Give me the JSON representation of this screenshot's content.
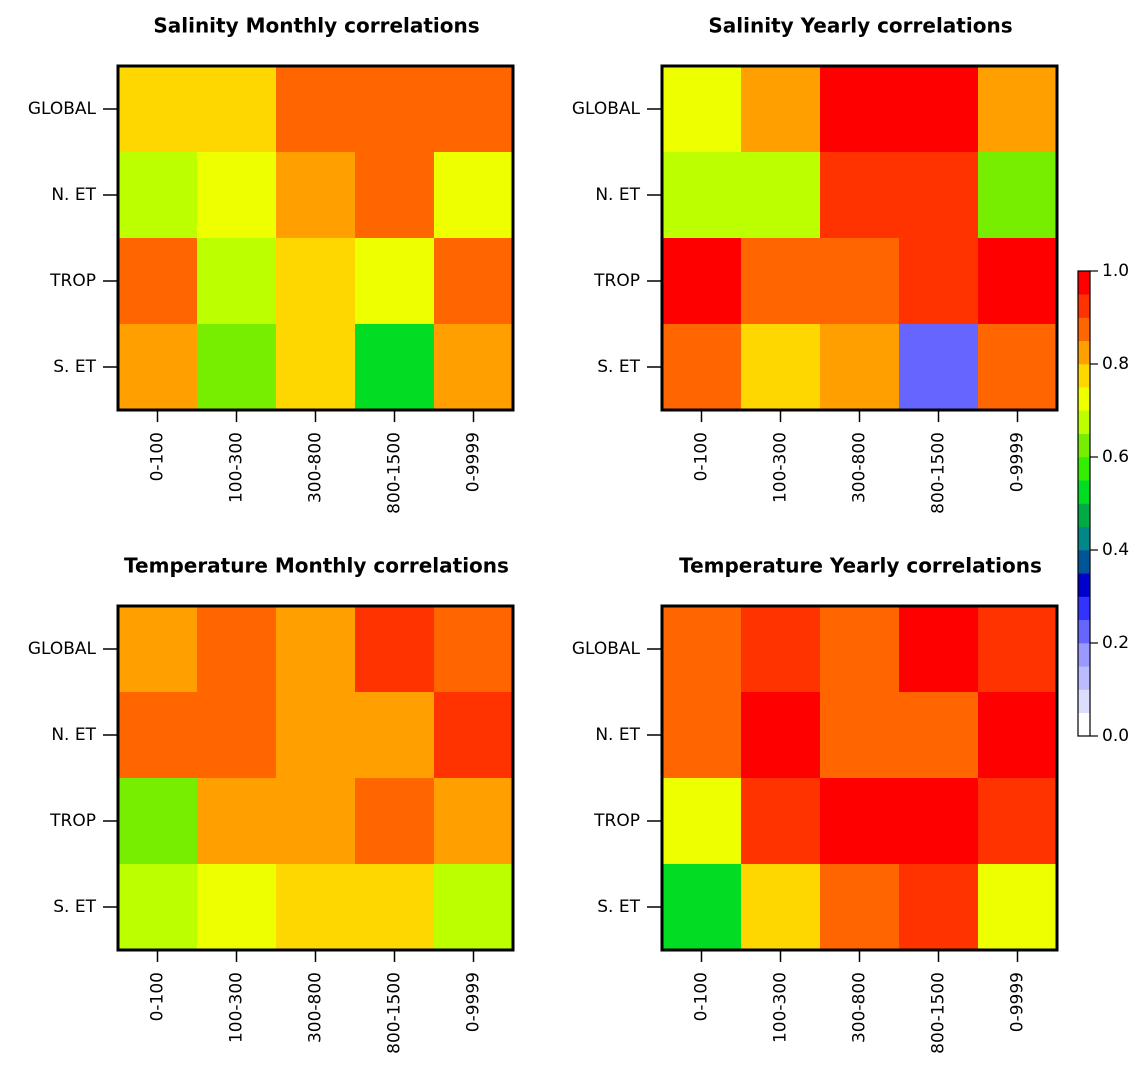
{
  "chart_data": [
    {
      "type": "heatmap",
      "title": "Salinity Monthly correlations",
      "x": [
        "0-100",
        "100-300",
        "300-800",
        "800-1500",
        "0-9999"
      ],
      "y": [
        "GLOBAL",
        "N. ET",
        "TROP",
        "S. ET"
      ],
      "values": [
        [
          0.78,
          0.78,
          0.87,
          0.87,
          0.87
        ],
        [
          0.67,
          0.72,
          0.82,
          0.87,
          0.72
        ],
        [
          0.87,
          0.67,
          0.78,
          0.72,
          0.87
        ],
        [
          0.82,
          0.62,
          0.78,
          0.52,
          0.82
        ]
      ]
    },
    {
      "type": "heatmap",
      "title": "Salinity Yearly correlations",
      "x": [
        "0-100",
        "100-300",
        "300-800",
        "800-1500",
        "0-9999"
      ],
      "y": [
        "GLOBAL",
        "N. ET",
        "TROP",
        "S. ET"
      ],
      "values": [
        [
          0.72,
          0.82,
          0.97,
          0.97,
          0.82
        ],
        [
          0.67,
          0.67,
          0.92,
          0.92,
          0.62
        ],
        [
          0.97,
          0.87,
          0.87,
          0.92,
          0.97
        ],
        [
          0.87,
          0.78,
          0.82,
          0.22,
          0.87
        ]
      ]
    },
    {
      "type": "heatmap",
      "title": "Temperature Monthly correlations",
      "x": [
        "0-100",
        "100-300",
        "300-800",
        "800-1500",
        "0-9999"
      ],
      "y": [
        "GLOBAL",
        "N. ET",
        "TROP",
        "S. ET"
      ],
      "values": [
        [
          0.82,
          0.87,
          0.82,
          0.92,
          0.87
        ],
        [
          0.87,
          0.87,
          0.82,
          0.82,
          0.92
        ],
        [
          0.62,
          0.82,
          0.82,
          0.87,
          0.82
        ],
        [
          0.67,
          0.72,
          0.78,
          0.78,
          0.67
        ]
      ]
    },
    {
      "type": "heatmap",
      "title": "Temperature Yearly correlations",
      "x": [
        "0-100",
        "100-300",
        "300-800",
        "800-1500",
        "0-9999"
      ],
      "y": [
        "GLOBAL",
        "N. ET",
        "TROP",
        "S. ET"
      ],
      "values": [
        [
          0.87,
          0.92,
          0.87,
          0.97,
          0.92
        ],
        [
          0.87,
          0.97,
          0.87,
          0.87,
          0.97
        ],
        [
          0.72,
          0.92,
          0.97,
          0.97,
          0.92
        ],
        [
          0.52,
          0.78,
          0.87,
          0.92,
          0.72
        ]
      ]
    }
  ],
  "colorbar": {
    "ylim": [
      0,
      1
    ],
    "yticks": [
      {
        "value": 0,
        "label": "0.0"
      },
      0.2,
      0.4,
      0.6,
      0.8,
      {
        "value": 1,
        "label": "1.0"
      }
    ],
    "colors": [
      "#ffffff",
      "#ddddff",
      "#bbbbff",
      "#9999ff",
      "#6666ff",
      "#3333ff",
      "#0000cc",
      "#005599",
      "#008888",
      "#00aa44",
      "#00dd22",
      "#33ee00",
      "#77ee00",
      "#bbff00",
      "#eeff00",
      "#ffd700",
      "#ffa000",
      "#ff6600",
      "#ff3300",
      "#ff0000"
    ]
  }
}
